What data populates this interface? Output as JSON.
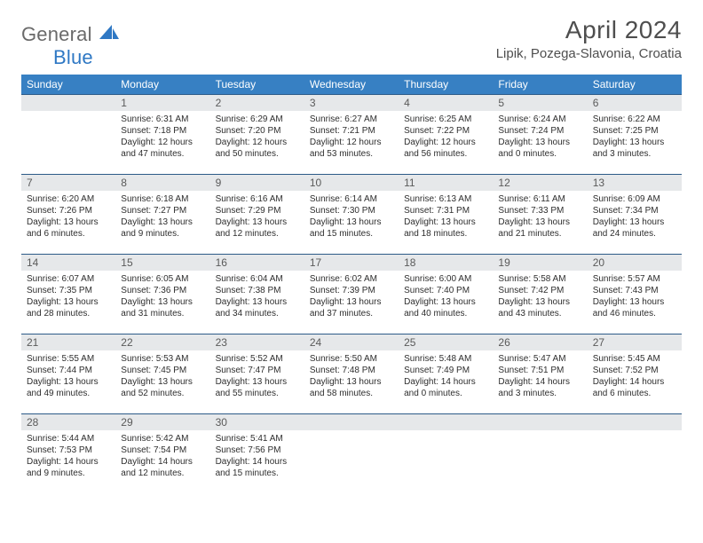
{
  "brand": {
    "part1": "General",
    "part2": "Blue"
  },
  "title": "April 2024",
  "location": "Lipik, Pozega-Slavonia, Croatia",
  "dayHeaders": [
    "Sunday",
    "Monday",
    "Tuesday",
    "Wednesday",
    "Thursday",
    "Friday",
    "Saturday"
  ],
  "colors": {
    "headerBg": "#3780c3",
    "headerText": "#ffffff",
    "dayBarBg": "#e6e8ea",
    "dayBarBorder": "#2d5b88",
    "bodyText": "#2e2e2e",
    "titleText": "#4e4e4e",
    "logoGray": "#6a6a6a",
    "logoBlue": "#2f78c4"
  },
  "weeks": [
    {
      "nums": [
        "",
        "1",
        "2",
        "3",
        "4",
        "5",
        "6"
      ],
      "cells": [
        "",
        "Sunrise: 6:31 AM\nSunset: 7:18 PM\nDaylight: 12 hours\nand 47 minutes.",
        "Sunrise: 6:29 AM\nSunset: 7:20 PM\nDaylight: 12 hours\nand 50 minutes.",
        "Sunrise: 6:27 AM\nSunset: 7:21 PM\nDaylight: 12 hours\nand 53 minutes.",
        "Sunrise: 6:25 AM\nSunset: 7:22 PM\nDaylight: 12 hours\nand 56 minutes.",
        "Sunrise: 6:24 AM\nSunset: 7:24 PM\nDaylight: 13 hours\nand 0 minutes.",
        "Sunrise: 6:22 AM\nSunset: 7:25 PM\nDaylight: 13 hours\nand 3 minutes."
      ]
    },
    {
      "nums": [
        "7",
        "8",
        "9",
        "10",
        "11",
        "12",
        "13"
      ],
      "cells": [
        "Sunrise: 6:20 AM\nSunset: 7:26 PM\nDaylight: 13 hours\nand 6 minutes.",
        "Sunrise: 6:18 AM\nSunset: 7:27 PM\nDaylight: 13 hours\nand 9 minutes.",
        "Sunrise: 6:16 AM\nSunset: 7:29 PM\nDaylight: 13 hours\nand 12 minutes.",
        "Sunrise: 6:14 AM\nSunset: 7:30 PM\nDaylight: 13 hours\nand 15 minutes.",
        "Sunrise: 6:13 AM\nSunset: 7:31 PM\nDaylight: 13 hours\nand 18 minutes.",
        "Sunrise: 6:11 AM\nSunset: 7:33 PM\nDaylight: 13 hours\nand 21 minutes.",
        "Sunrise: 6:09 AM\nSunset: 7:34 PM\nDaylight: 13 hours\nand 24 minutes."
      ]
    },
    {
      "nums": [
        "14",
        "15",
        "16",
        "17",
        "18",
        "19",
        "20"
      ],
      "cells": [
        "Sunrise: 6:07 AM\nSunset: 7:35 PM\nDaylight: 13 hours\nand 28 minutes.",
        "Sunrise: 6:05 AM\nSunset: 7:36 PM\nDaylight: 13 hours\nand 31 minutes.",
        "Sunrise: 6:04 AM\nSunset: 7:38 PM\nDaylight: 13 hours\nand 34 minutes.",
        "Sunrise: 6:02 AM\nSunset: 7:39 PM\nDaylight: 13 hours\nand 37 minutes.",
        "Sunrise: 6:00 AM\nSunset: 7:40 PM\nDaylight: 13 hours\nand 40 minutes.",
        "Sunrise: 5:58 AM\nSunset: 7:42 PM\nDaylight: 13 hours\nand 43 minutes.",
        "Sunrise: 5:57 AM\nSunset: 7:43 PM\nDaylight: 13 hours\nand 46 minutes."
      ]
    },
    {
      "nums": [
        "21",
        "22",
        "23",
        "24",
        "25",
        "26",
        "27"
      ],
      "cells": [
        "Sunrise: 5:55 AM\nSunset: 7:44 PM\nDaylight: 13 hours\nand 49 minutes.",
        "Sunrise: 5:53 AM\nSunset: 7:45 PM\nDaylight: 13 hours\nand 52 minutes.",
        "Sunrise: 5:52 AM\nSunset: 7:47 PM\nDaylight: 13 hours\nand 55 minutes.",
        "Sunrise: 5:50 AM\nSunset: 7:48 PM\nDaylight: 13 hours\nand 58 minutes.",
        "Sunrise: 5:48 AM\nSunset: 7:49 PM\nDaylight: 14 hours\nand 0 minutes.",
        "Sunrise: 5:47 AM\nSunset: 7:51 PM\nDaylight: 14 hours\nand 3 minutes.",
        "Sunrise: 5:45 AM\nSunset: 7:52 PM\nDaylight: 14 hours\nand 6 minutes."
      ]
    },
    {
      "nums": [
        "28",
        "29",
        "30",
        "",
        "",
        "",
        ""
      ],
      "cells": [
        "Sunrise: 5:44 AM\nSunset: 7:53 PM\nDaylight: 14 hours\nand 9 minutes.",
        "Sunrise: 5:42 AM\nSunset: 7:54 PM\nDaylight: 14 hours\nand 12 minutes.",
        "Sunrise: 5:41 AM\nSunset: 7:56 PM\nDaylight: 14 hours\nand 15 minutes.",
        "",
        "",
        "",
        ""
      ]
    }
  ]
}
